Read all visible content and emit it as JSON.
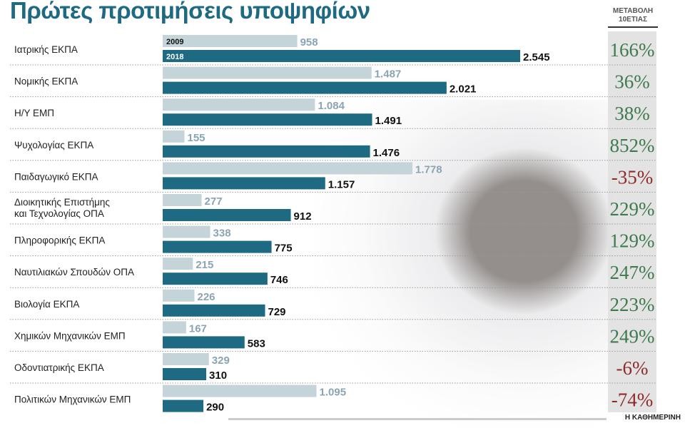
{
  "chart_data": {
    "type": "bar",
    "orientation": "horizontal",
    "title": "Πρώτες προτιμήσεις υποψηφίων",
    "categories": [
      "Ιατρικής ΕΚΠΑ",
      "Νομικής ΕΚΠΑ",
      "Η/Υ ΕΜΠ",
      "Ψυχολογίας ΕΚΠΑ",
      "Παιδαγωγικό ΕΚΠΑ",
      "Διοικητικής Επιστήμης και Τεχνολογίας ΟΠΑ",
      "Πληροφορικής ΕΚΠΑ",
      "Ναυτιλιακών Σπουδών ΟΠΑ",
      "Βιολογία ΕΚΠΑ",
      "Χημικών Μηχανικών ΕΜΠ",
      "Οδοντιατρικής ΕΚΠΑ",
      "Πολιτικών Μηχανικών ΕΜΠ"
    ],
    "series": [
      {
        "name": "2009",
        "color": "#c5d4d9",
        "label_color": "#8aa4b4",
        "values": [
          958,
          1487,
          1084,
          155,
          1778,
          277,
          338,
          215,
          226,
          167,
          329,
          1095
        ]
      },
      {
        "name": "2018",
        "color": "#1d6a82",
        "label_color": "#111111",
        "values": [
          2545,
          2021,
          1491,
          1476,
          1157,
          912,
          775,
          746,
          729,
          583,
          310,
          290
        ]
      }
    ],
    "change_column": {
      "header": [
        "ΜΕΤΑΒΟΛΗ",
        "10ΕΤΙΑΣ"
      ],
      "values": [
        166,
        36,
        38,
        852,
        -35,
        229,
        129,
        247,
        223,
        249,
        -6,
        -74
      ],
      "suffix": "%",
      "positive_color": "#3f7a4f",
      "negative_color": "#8e2b2b"
    },
    "thousands_separator": ".",
    "grid": false
  },
  "source": "Η ΚΑΘΗΜΕΡΙΝΗ"
}
